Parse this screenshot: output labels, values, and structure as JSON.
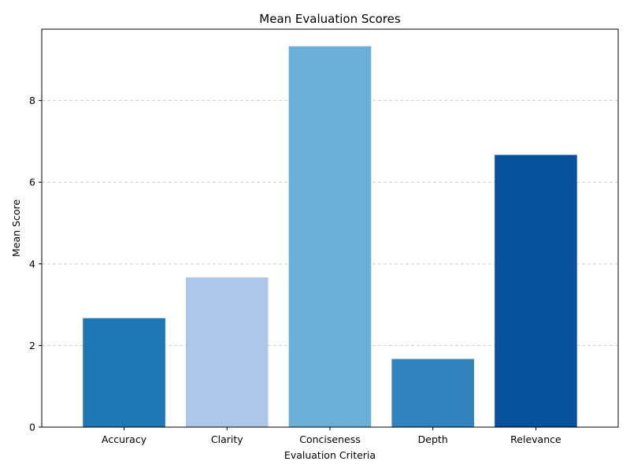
{
  "chart_data": {
    "type": "bar",
    "title": "Mean Evaluation Scores",
    "xlabel": "Evaluation Criteria",
    "ylabel": "Mean Score",
    "categories": [
      "Accuracy",
      "Clarity",
      "Conciseness",
      "Depth",
      "Relevance"
    ],
    "values": [
      2.67,
      3.67,
      9.33,
      1.67,
      6.67
    ],
    "colors": [
      "#1f77b4",
      "#aec7e8",
      "#6baed6",
      "#3182bd",
      "#08519c"
    ],
    "ylim": [
      0,
      9.75
    ],
    "yticks": [
      0,
      2,
      4,
      6,
      8
    ],
    "ytick_labels": [
      "0",
      "2",
      "4",
      "6",
      "8"
    ],
    "grid": "y-dashed",
    "legend": "none"
  }
}
